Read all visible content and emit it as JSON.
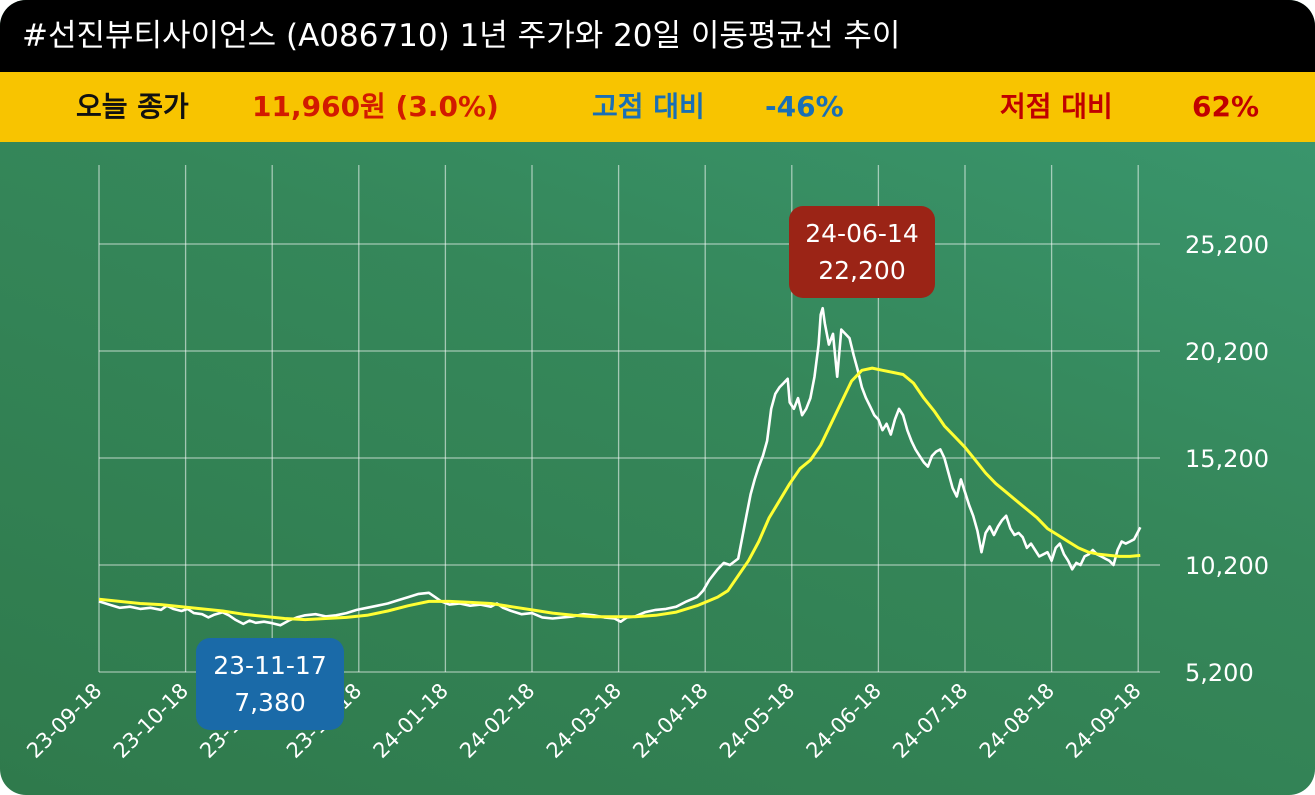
{
  "title": "#선진뷰티사이언스 (A086710) 1년 주가와 20일 이동평균선 추이",
  "summary": {
    "close_label": "오늘 종가",
    "close_value": "11,960원 (3.0%)",
    "high_label": "고점 대비",
    "high_value": "-46%",
    "low_label": "저점 대비",
    "low_value": "62%"
  },
  "colors": {
    "title_bg": "#000000",
    "summary_bg": "#f8c400",
    "close_value": "#d21a00",
    "high_compare": "#1a6fb5",
    "low_compare": "#c00000",
    "price_line": "#ffffff",
    "ma_line": "#ffff33",
    "high_box": "#9b2416",
    "low_box": "#1a6aa8"
  },
  "chart_data": {
    "type": "line",
    "x_ticks": [
      "23-09-18",
      "23-10-18",
      "23-11-18",
      "23-12-18",
      "24-01-18",
      "24-02-18",
      "24-03-18",
      "24-04-18",
      "24-05-18",
      "24-06-18",
      "24-07-18",
      "24-08-18",
      "24-09-18"
    ],
    "y_ticks": [
      5200,
      10200,
      15200,
      20200,
      25200
    ],
    "y_tick_labels": [
      "5,200",
      "10,200",
      "15,200",
      "20,200",
      "25,200"
    ],
    "ylim": [
      5200,
      25200
    ],
    "grid": true,
    "series": [
      {
        "values": [
          [
            0,
            8500
          ],
          [
            0.5,
            8350
          ],
          [
            1,
            8200
          ],
          [
            1.5,
            8250
          ],
          [
            2,
            8150
          ],
          [
            2.5,
            8200
          ],
          [
            3,
            8100
          ],
          [
            3.3,
            8300
          ],
          [
            3.6,
            8150
          ],
          [
            4,
            8050
          ],
          [
            4.3,
            8150
          ],
          [
            4.6,
            7950
          ],
          [
            5,
            7900
          ],
          [
            5.3,
            7750
          ],
          [
            5.6,
            7880
          ],
          [
            6,
            7990
          ],
          [
            6.3,
            7850
          ],
          [
            6.6,
            7650
          ],
          [
            7,
            7450
          ],
          [
            7.3,
            7600
          ],
          [
            7.6,
            7500
          ],
          [
            8,
            7550
          ],
          [
            8.4,
            7480
          ],
          [
            8.8,
            7380
          ],
          [
            9.2,
            7600
          ],
          [
            9.6,
            7750
          ],
          [
            10,
            7850
          ],
          [
            10.5,
            7900
          ],
          [
            11,
            7800
          ],
          [
            11.5,
            7850
          ],
          [
            12,
            7950
          ],
          [
            12.5,
            8100
          ],
          [
            13,
            8200
          ],
          [
            13.5,
            8300
          ],
          [
            14,
            8400
          ],
          [
            14.5,
            8550
          ],
          [
            15,
            8700
          ],
          [
            15.5,
            8850
          ],
          [
            16,
            8900
          ],
          [
            16.3,
            8700
          ],
          [
            16.6,
            8500
          ],
          [
            17,
            8350
          ],
          [
            17.5,
            8400
          ],
          [
            18,
            8300
          ],
          [
            18.5,
            8350
          ],
          [
            19,
            8250
          ],
          [
            19.3,
            8400
          ],
          [
            19.6,
            8200
          ],
          [
            20,
            8050
          ],
          [
            20.5,
            7900
          ],
          [
            21,
            7950
          ],
          [
            21.5,
            7750
          ],
          [
            22,
            7700
          ],
          [
            22.5,
            7750
          ],
          [
            23,
            7800
          ],
          [
            23.5,
            7900
          ],
          [
            24,
            7850
          ],
          [
            24.5,
            7750
          ],
          [
            25,
            7700
          ],
          [
            25.3,
            7550
          ],
          [
            25.6,
            7750
          ],
          [
            26,
            7800
          ],
          [
            26.5,
            8000
          ],
          [
            27,
            8100
          ],
          [
            27.5,
            8150
          ],
          [
            28,
            8250
          ],
          [
            28.5,
            8500
          ],
          [
            29,
            8700
          ],
          [
            29.3,
            9000
          ],
          [
            29.6,
            9500
          ],
          [
            30,
            10000
          ],
          [
            30.3,
            10300
          ],
          [
            30.6,
            10200
          ],
          [
            31,
            10500
          ],
          [
            31.2,
            11500
          ],
          [
            31.4,
            12500
          ],
          [
            31.6,
            13500
          ],
          [
            31.8,
            14200
          ],
          [
            32,
            14800
          ],
          [
            32.2,
            15300
          ],
          [
            32.4,
            16000
          ],
          [
            32.6,
            17500
          ],
          [
            32.8,
            18200
          ],
          [
            33,
            18500
          ],
          [
            33.2,
            18700
          ],
          [
            33.4,
            18900
          ],
          [
            33.5,
            17800
          ],
          [
            33.7,
            17500
          ],
          [
            33.9,
            18000
          ],
          [
            34.1,
            17200
          ],
          [
            34.3,
            17500
          ],
          [
            34.5,
            18000
          ],
          [
            34.7,
            19000
          ],
          [
            34.9,
            20500
          ],
          [
            35,
            21900
          ],
          [
            35.1,
            22200
          ],
          [
            35.2,
            21500
          ],
          [
            35.4,
            20500
          ],
          [
            35.6,
            21000
          ],
          [
            35.8,
            19000
          ],
          [
            36,
            21200
          ],
          [
            36.2,
            21000
          ],
          [
            36.4,
            20800
          ],
          [
            36.6,
            20000
          ],
          [
            36.8,
            19300
          ],
          [
            37,
            18500
          ],
          [
            37.2,
            18000
          ],
          [
            37.4,
            17600
          ],
          [
            37.6,
            17200
          ],
          [
            37.8,
            17000
          ],
          [
            38,
            16500
          ],
          [
            38.2,
            16800
          ],
          [
            38.4,
            16300
          ],
          [
            38.6,
            17000
          ],
          [
            38.8,
            17500
          ],
          [
            39,
            17200
          ],
          [
            39.2,
            16500
          ],
          [
            39.4,
            16000
          ],
          [
            39.6,
            15600
          ],
          [
            39.8,
            15300
          ],
          [
            40,
            15000
          ],
          [
            40.2,
            14800
          ],
          [
            40.4,
            15300
          ],
          [
            40.6,
            15500
          ],
          [
            40.8,
            15600
          ],
          [
            41,
            15200
          ],
          [
            41.2,
            14500
          ],
          [
            41.4,
            13800
          ],
          [
            41.6,
            13400
          ],
          [
            41.8,
            14200
          ],
          [
            42,
            13600
          ],
          [
            42.2,
            13000
          ],
          [
            42.4,
            12500
          ],
          [
            42.6,
            11800
          ],
          [
            42.8,
            10800
          ],
          [
            43,
            11700
          ],
          [
            43.2,
            12000
          ],
          [
            43.4,
            11600
          ],
          [
            43.6,
            12000
          ],
          [
            43.8,
            12300
          ],
          [
            44,
            12500
          ],
          [
            44.2,
            11900
          ],
          [
            44.4,
            11600
          ],
          [
            44.6,
            11700
          ],
          [
            44.8,
            11500
          ],
          [
            45,
            11000
          ],
          [
            45.2,
            11200
          ],
          [
            45.4,
            10900
          ],
          [
            45.6,
            10600
          ],
          [
            45.8,
            10700
          ],
          [
            46,
            10800
          ],
          [
            46.2,
            10400
          ],
          [
            46.4,
            11000
          ],
          [
            46.6,
            11200
          ],
          [
            46.8,
            10700
          ],
          [
            47,
            10400
          ],
          [
            47.2,
            10000
          ],
          [
            47.4,
            10300
          ],
          [
            47.6,
            10200
          ],
          [
            47.8,
            10600
          ],
          [
            48,
            10700
          ],
          [
            48.2,
            10900
          ],
          [
            48.4,
            10700
          ],
          [
            48.6,
            10600
          ],
          [
            48.8,
            10500
          ],
          [
            49,
            10400
          ],
          [
            49.2,
            10200
          ],
          [
            49.4,
            10900
          ],
          [
            49.6,
            11300
          ],
          [
            49.8,
            11200
          ],
          [
            50,
            11300
          ],
          [
            50.2,
            11400
          ],
          [
            50.5,
            11960
          ]
        ]
      },
      {
        "values": [
          [
            0,
            8600
          ],
          [
            1,
            8500
          ],
          [
            2,
            8400
          ],
          [
            3,
            8350
          ],
          [
            4,
            8250
          ],
          [
            5,
            8150
          ],
          [
            6,
            8050
          ],
          [
            7,
            7900
          ],
          [
            8,
            7800
          ],
          [
            9,
            7700
          ],
          [
            10,
            7650
          ],
          [
            11,
            7700
          ],
          [
            12,
            7750
          ],
          [
            13,
            7850
          ],
          [
            14,
            8050
          ],
          [
            15,
            8300
          ],
          [
            16,
            8500
          ],
          [
            17,
            8500
          ],
          [
            18,
            8450
          ],
          [
            19,
            8400
          ],
          [
            20,
            8250
          ],
          [
            21,
            8100
          ],
          [
            22,
            7950
          ],
          [
            23,
            7850
          ],
          [
            24,
            7780
          ],
          [
            25,
            7780
          ],
          [
            26,
            7780
          ],
          [
            27,
            7850
          ],
          [
            28,
            8000
          ],
          [
            29,
            8300
          ],
          [
            30,
            8700
          ],
          [
            30.5,
            9000
          ],
          [
            31,
            9700
          ],
          [
            31.5,
            10400
          ],
          [
            32,
            11300
          ],
          [
            32.5,
            12400
          ],
          [
            33,
            13200
          ],
          [
            33.5,
            14000
          ],
          [
            34,
            14700
          ],
          [
            34.5,
            15100
          ],
          [
            35,
            15800
          ],
          [
            35.5,
            16800
          ],
          [
            36,
            17800
          ],
          [
            36.5,
            18800
          ],
          [
            37,
            19300
          ],
          [
            37.5,
            19400
          ],
          [
            38,
            19300
          ],
          [
            38.5,
            19200
          ],
          [
            39,
            19100
          ],
          [
            39.5,
            18700
          ],
          [
            40,
            18000
          ],
          [
            40.5,
            17400
          ],
          [
            41,
            16700
          ],
          [
            41.5,
            16200
          ],
          [
            42,
            15700
          ],
          [
            42.5,
            15100
          ],
          [
            43,
            14500
          ],
          [
            43.5,
            14000
          ],
          [
            44,
            13600
          ],
          [
            44.5,
            13200
          ],
          [
            45,
            12800
          ],
          [
            45.5,
            12400
          ],
          [
            46,
            11900
          ],
          [
            46.5,
            11600
          ],
          [
            47,
            11300
          ],
          [
            47.5,
            11000
          ],
          [
            48,
            10800
          ],
          [
            48.5,
            10700
          ],
          [
            49,
            10650
          ],
          [
            49.5,
            10600
          ],
          [
            50,
            10600
          ],
          [
            50.5,
            10650
          ]
        ]
      }
    ],
    "annotations": [
      {
        "date": "24-06-14",
        "value": "22,200"
      },
      {
        "date": "23-11-17",
        "value": "7,380"
      }
    ]
  }
}
